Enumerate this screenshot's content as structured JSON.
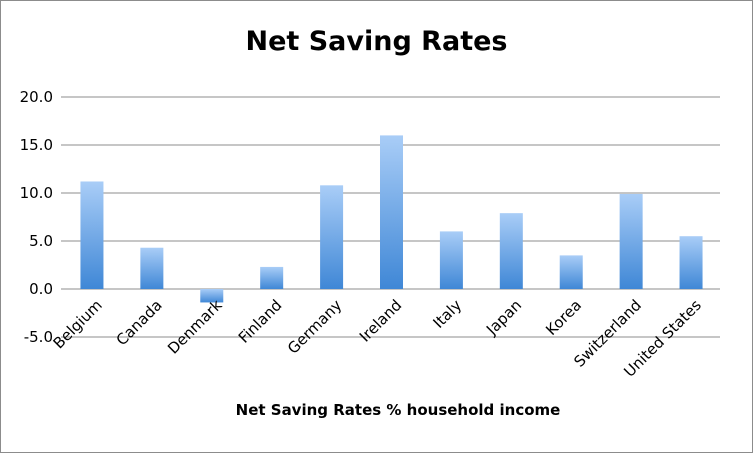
{
  "chart_data": {
    "type": "bar",
    "title": "Net Saving Rates",
    "xlabel": "Net Saving Rates % household income",
    "ylabel": "",
    "categories": [
      "Belgium",
      "Canada",
      "Denmark",
      "Finland",
      "Germany",
      "Ireland",
      "Italy",
      "Japan",
      "Korea",
      "Switzerland",
      "United States"
    ],
    "values": [
      11.2,
      4.3,
      -1.4,
      2.3,
      10.8,
      16.0,
      6.0,
      7.9,
      3.5,
      9.9,
      5.5
    ],
    "ylim": [
      -5.0,
      20.0
    ],
    "yticks": [
      "-5.0",
      "0.0",
      "5.0",
      "10.0",
      "15.0",
      "20.0"
    ],
    "grid": true,
    "legend": "none",
    "colors": {
      "bar_top": "#a9cdf7",
      "bar_bottom": "#3f87d6",
      "grid": "#8c8c8c"
    }
  }
}
